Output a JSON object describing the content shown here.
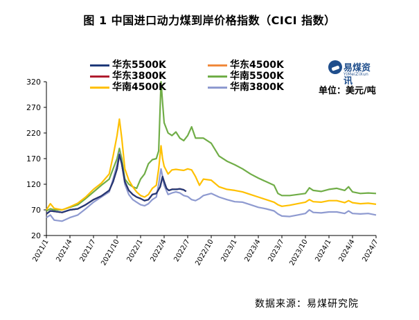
{
  "figure": {
    "title": "图 1    中国进口动力煤到岸价格指数（CICI 指数）",
    "source": "数据来源：易煤研究院",
    "unit": "单位：美元/吨",
    "logo_name": "易煤资讯",
    "logo_sub": "YiMeiZiXun"
  },
  "chart_data": {
    "type": "line",
    "title": "中国进口动力煤到岸价格指数（CICI 指数）",
    "ylabel": "",
    "xlabel": "",
    "ylim": [
      20,
      320
    ],
    "yticks": [
      20,
      70,
      120,
      170,
      220,
      270,
      320
    ],
    "xlim": [
      0,
      42
    ],
    "xticks": [
      {
        "label": "2021/1",
        "x": 0
      },
      {
        "label": "2021/4",
        "x": 3
      },
      {
        "label": "2021/7",
        "x": 6
      },
      {
        "label": "2021/10",
        "x": 9
      },
      {
        "label": "2022/1",
        "x": 12
      },
      {
        "label": "2022/4",
        "x": 15
      },
      {
        "label": "2022/7",
        "x": 18
      },
      {
        "label": "2022/10",
        "x": 21
      },
      {
        "label": "2023/1",
        "x": 24
      },
      {
        "label": "2023/4",
        "x": 27
      },
      {
        "label": "2023/7",
        "x": 30
      },
      {
        "label": "2023/10",
        "x": 33
      },
      {
        "label": "2024/1",
        "x": 36
      },
      {
        "label": "2024/4",
        "x": 39
      },
      {
        "label": "2024/7",
        "x": 42
      }
    ],
    "legend_position": "top-left",
    "grid": false,
    "series": [
      {
        "name": "华东5500K",
        "color": "#1f3a7a",
        "points": [
          [
            0,
            62
          ],
          [
            0.5,
            68
          ],
          [
            1,
            67
          ],
          [
            2,
            65
          ],
          [
            3,
            70
          ],
          [
            4,
            72
          ],
          [
            5,
            80
          ],
          [
            6,
            90
          ],
          [
            7,
            97
          ],
          [
            8,
            108
          ],
          [
            8.5,
            125
          ],
          [
            9,
            150
          ],
          [
            9.3,
            178
          ],
          [
            9.6,
            160
          ],
          [
            10,
            125
          ],
          [
            10.5,
            108
          ],
          [
            11,
            100
          ],
          [
            11.5,
            95
          ],
          [
            12,
            92
          ],
          [
            12.5,
            88
          ],
          [
            13,
            90
          ],
          [
            13.5,
            100
          ],
          [
            14,
            102
          ],
          [
            14.5,
            115
          ],
          [
            14.8,
            135
          ],
          [
            15,
            125
          ],
          [
            15.3,
            112
          ],
          [
            15.6,
            108
          ],
          [
            16,
            110
          ],
          [
            16.5,
            110
          ],
          [
            17,
            111
          ],
          [
            17.5,
            109
          ],
          [
            17.8,
            106
          ]
        ]
      },
      {
        "name": "华东4500K",
        "color": "#f08a3c",
        "points": [
          [
            0,
            62
          ],
          [
            0.5,
            68
          ],
          [
            1,
            67
          ],
          [
            2,
            65
          ],
          [
            3,
            70
          ],
          [
            4,
            72
          ],
          [
            5,
            80
          ],
          [
            6,
            90
          ],
          [
            7,
            97
          ],
          [
            8,
            108
          ],
          [
            8.5,
            125
          ],
          [
            9,
            150
          ],
          [
            9.3,
            178
          ],
          [
            9.6,
            160
          ],
          [
            10,
            125
          ],
          [
            10.5,
            108
          ],
          [
            11,
            100
          ],
          [
            11.5,
            95
          ],
          [
            12,
            92
          ],
          [
            12.5,
            88
          ],
          [
            13,
            90
          ],
          [
            13.5,
            100
          ],
          [
            14,
            102
          ],
          [
            14.5,
            115
          ],
          [
            14.8,
            135
          ],
          [
            15,
            125
          ],
          [
            15.3,
            112
          ],
          [
            15.6,
            108
          ],
          [
            16,
            110
          ],
          [
            16.5,
            110
          ],
          [
            17,
            111
          ],
          [
            17.5,
            109
          ],
          [
            17.8,
            106
          ]
        ]
      },
      {
        "name": "华东3800K",
        "color": "#b01c2e",
        "points": [
          [
            0,
            62
          ],
          [
            0.5,
            68
          ],
          [
            1,
            67
          ],
          [
            2,
            65
          ],
          [
            3,
            70
          ],
          [
            4,
            72
          ],
          [
            5,
            80
          ],
          [
            6,
            90
          ],
          [
            7,
            97
          ],
          [
            8,
            108
          ],
          [
            8.5,
            125
          ],
          [
            9,
            150
          ],
          [
            9.3,
            178
          ],
          [
            9.6,
            160
          ],
          [
            10,
            125
          ],
          [
            10.5,
            108
          ],
          [
            11,
            100
          ],
          [
            11.5,
            95
          ],
          [
            12,
            92
          ],
          [
            12.5,
            88
          ],
          [
            13,
            90
          ],
          [
            13.5,
            100
          ],
          [
            14,
            102
          ],
          [
            14.5,
            115
          ],
          [
            14.8,
            135
          ],
          [
            15,
            125
          ],
          [
            15.3,
            112
          ],
          [
            15.6,
            108
          ],
          [
            16,
            110
          ],
          [
            16.5,
            110
          ],
          [
            17,
            111
          ],
          [
            17.5,
            109
          ],
          [
            17.8,
            106
          ]
        ]
      },
      {
        "name": "华南5500K",
        "color": "#70ad47",
        "points": [
          [
            0,
            68
          ],
          [
            0.5,
            72
          ],
          [
            1,
            70
          ],
          [
            2,
            70
          ],
          [
            3,
            75
          ],
          [
            4,
            80
          ],
          [
            5,
            92
          ],
          [
            6,
            105
          ],
          [
            7,
            118
          ],
          [
            8,
            130
          ],
          [
            8.5,
            150
          ],
          [
            9,
            170
          ],
          [
            9.3,
            190
          ],
          [
            9.6,
            170
          ],
          [
            10,
            130
          ],
          [
            10.5,
            120
          ],
          [
            11,
            115
          ],
          [
            11.5,
            112
          ],
          [
            12,
            130
          ],
          [
            12.5,
            140
          ],
          [
            13,
            160
          ],
          [
            13.5,
            168
          ],
          [
            14,
            170
          ],
          [
            14.3,
            185
          ],
          [
            14.6,
            320
          ],
          [
            14.8,
            280
          ],
          [
            15,
            240
          ],
          [
            15.5,
            220
          ],
          [
            16,
            215
          ],
          [
            16.5,
            222
          ],
          [
            17,
            210
          ],
          [
            17.5,
            205
          ],
          [
            18,
            215
          ],
          [
            18.5,
            232
          ],
          [
            19,
            210
          ],
          [
            20,
            210
          ],
          [
            21,
            200
          ],
          [
            22,
            175
          ],
          [
            23,
            165
          ],
          [
            24,
            158
          ],
          [
            25,
            150
          ],
          [
            26,
            140
          ],
          [
            27,
            132
          ],
          [
            28,
            125
          ],
          [
            29,
            118
          ],
          [
            29.5,
            102
          ],
          [
            30,
            98
          ],
          [
            31,
            98
          ],
          [
            32,
            100
          ],
          [
            33,
            102
          ],
          [
            33.5,
            113
          ],
          [
            34,
            108
          ],
          [
            35,
            106
          ],
          [
            36,
            110
          ],
          [
            37,
            112
          ],
          [
            38,
            108
          ],
          [
            38.5,
            115
          ],
          [
            39,
            105
          ],
          [
            40,
            102
          ],
          [
            41,
            103
          ],
          [
            42,
            102
          ]
        ]
      },
      {
        "name": "华南4500K",
        "color": "#ffc000",
        "points": [
          [
            0,
            70
          ],
          [
            0.5,
            82
          ],
          [
            1,
            73
          ],
          [
            2,
            70
          ],
          [
            3,
            76
          ],
          [
            4,
            83
          ],
          [
            5,
            95
          ],
          [
            6,
            110
          ],
          [
            7,
            122
          ],
          [
            8,
            140
          ],
          [
            8.5,
            175
          ],
          [
            9,
            215
          ],
          [
            9.3,
            247
          ],
          [
            9.6,
            210
          ],
          [
            10,
            150
          ],
          [
            10.5,
            128
          ],
          [
            11,
            115
          ],
          [
            11.5,
            105
          ],
          [
            12,
            98
          ],
          [
            12.5,
            95
          ],
          [
            13,
            100
          ],
          [
            13.5,
            112
          ],
          [
            14,
            118
          ],
          [
            14.3,
            150
          ],
          [
            14.6,
            195
          ],
          [
            14.8,
            170
          ],
          [
            15,
            155
          ],
          [
            15.5,
            140
          ],
          [
            16,
            148
          ],
          [
            16.5,
            149
          ],
          [
            17,
            148
          ],
          [
            17.5,
            147
          ],
          [
            18,
            150
          ],
          [
            18.5,
            148
          ],
          [
            19,
            135
          ],
          [
            19.5,
            118
          ],
          [
            20,
            130
          ],
          [
            21,
            128
          ],
          [
            22,
            115
          ],
          [
            23,
            110
          ],
          [
            24,
            108
          ],
          [
            25,
            105
          ],
          [
            26,
            100
          ],
          [
            27,
            95
          ],
          [
            28,
            90
          ],
          [
            29,
            85
          ],
          [
            29.5,
            80
          ],
          [
            30,
            77
          ],
          [
            31,
            79
          ],
          [
            32,
            82
          ],
          [
            33,
            85
          ],
          [
            33.5,
            90
          ],
          [
            34,
            86
          ],
          [
            35,
            85
          ],
          [
            36,
            88
          ],
          [
            37,
            88
          ],
          [
            38,
            84
          ],
          [
            38.5,
            88
          ],
          [
            39,
            84
          ],
          [
            40,
            82
          ],
          [
            41,
            83
          ],
          [
            42,
            81
          ]
        ]
      },
      {
        "name": "华南3800K",
        "color": "#8e9ad0",
        "points": [
          [
            0,
            55
          ],
          [
            0.5,
            60
          ],
          [
            1,
            50
          ],
          [
            2,
            48
          ],
          [
            3,
            55
          ],
          [
            4,
            60
          ],
          [
            5,
            72
          ],
          [
            6,
            85
          ],
          [
            7,
            95
          ],
          [
            8,
            105
          ],
          [
            8.5,
            130
          ],
          [
            9,
            158
          ],
          [
            9.3,
            182
          ],
          [
            9.6,
            160
          ],
          [
            10,
            120
          ],
          [
            10.5,
            100
          ],
          [
            11,
            90
          ],
          [
            11.5,
            85
          ],
          [
            12,
            80
          ],
          [
            12.5,
            78
          ],
          [
            13,
            82
          ],
          [
            13.5,
            90
          ],
          [
            14,
            95
          ],
          [
            14.3,
            120
          ],
          [
            14.6,
            150
          ],
          [
            14.8,
            135
          ],
          [
            15,
            118
          ],
          [
            15.5,
            100
          ],
          [
            16,
            103
          ],
          [
            16.5,
            105
          ],
          [
            17,
            103
          ],
          [
            17.5,
            98
          ],
          [
            18,
            96
          ],
          [
            18.5,
            90
          ],
          [
            19,
            88
          ],
          [
            19.5,
            92
          ],
          [
            20,
            98
          ],
          [
            21,
            102
          ],
          [
            22,
            95
          ],
          [
            23,
            90
          ],
          [
            24,
            86
          ],
          [
            25,
            85
          ],
          [
            26,
            80
          ],
          [
            27,
            75
          ],
          [
            28,
            72
          ],
          [
            29,
            68
          ],
          [
            29.5,
            62
          ],
          [
            30,
            58
          ],
          [
            31,
            57
          ],
          [
            32,
            60
          ],
          [
            33,
            63
          ],
          [
            33.5,
            70
          ],
          [
            34,
            65
          ],
          [
            35,
            64
          ],
          [
            36,
            66
          ],
          [
            37,
            66
          ],
          [
            38,
            63
          ],
          [
            38.5,
            68
          ],
          [
            39,
            63
          ],
          [
            40,
            62
          ],
          [
            41,
            63
          ],
          [
            42,
            60
          ]
        ]
      }
    ]
  }
}
